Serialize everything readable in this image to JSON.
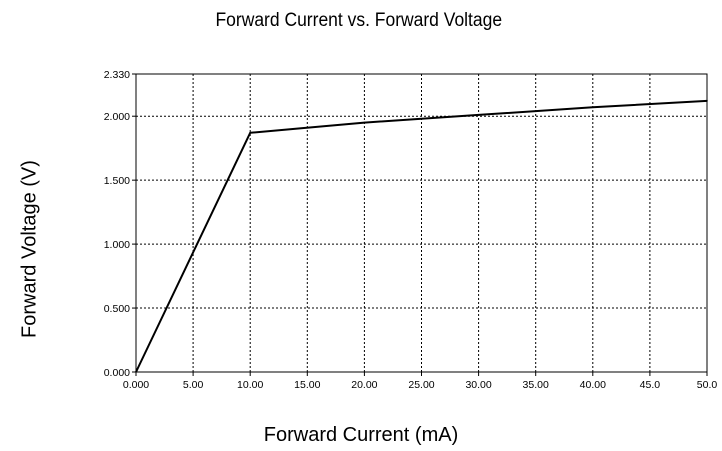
{
  "chart_data": {
    "type": "line",
    "title": "Forward Current vs. Forward Voltage",
    "xlabel": "Forward Current (mA)",
    "ylabel": "Forward Voltage (V)",
    "xlim": [
      0,
      50
    ],
    "ylim": [
      0,
      2.33
    ],
    "x_ticks": [
      0,
      5,
      10,
      15,
      20,
      25,
      30,
      35,
      40,
      45,
      50
    ],
    "x_tick_labels": [
      "0.000",
      "5.00",
      "10.00",
      "15.00",
      "20.00",
      "25.00",
      "30.00",
      "35.00",
      "40.00",
      "45.0",
      "50.0"
    ],
    "y_ticks": [
      0,
      0.5,
      1.0,
      1.5,
      2.0,
      2.33
    ],
    "y_tick_labels": [
      "0.000",
      "0.500",
      "1.000",
      "1.500",
      "2.000",
      "2.330"
    ],
    "grid": true,
    "grid_style": "dotted",
    "line_color": "#000000",
    "series": [
      {
        "x": [
          0,
          10,
          20,
          30,
          40,
          50
        ],
        "y": [
          0,
          1.87,
          1.95,
          2.01,
          2.07,
          2.12
        ]
      }
    ]
  }
}
